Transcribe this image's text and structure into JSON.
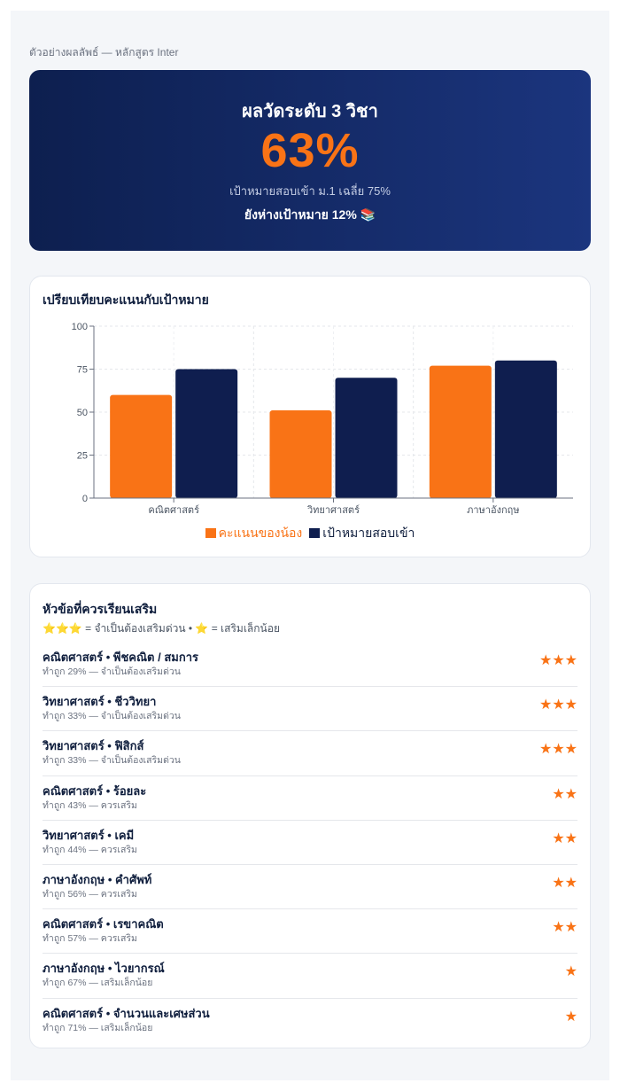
{
  "page": {
    "sample_label": "ตัวอย่างผลลัพธ์ — หลักสูตร Inter"
  },
  "hero": {
    "title": "ผลวัดระดับ 3 วิชา",
    "score": "63%",
    "target": "เป้าหมายสอบเข้า ม.1 เฉลี่ย 75%",
    "gap": "ยังห่างเป้าหมาย 12% 📚"
  },
  "chart": {
    "title": "เปรียบเทียบคะแนนกับเป้าหมาย"
  },
  "chart_data": {
    "type": "bar",
    "categories": [
      "คณิตศาสตร์",
      "วิทยาศาสตร์",
      "ภาษาอังกฤษ"
    ],
    "series": [
      {
        "name": "คะแนนของน้อง",
        "values": [
          60,
          51,
          77
        ],
        "color": "#f97316"
      },
      {
        "name": "เป้าหมายสอบเข้า",
        "values": [
          75,
          70,
          80
        ],
        "color": "#0f1e4f"
      }
    ],
    "ylim": [
      0,
      100
    ],
    "yticks": [
      0,
      25,
      50,
      75,
      100
    ],
    "grid": true,
    "legend": "bottom"
  },
  "topics": {
    "title": "หัวข้อที่ควรเรียนเสริม",
    "legend": "⭐⭐⭐ = จำเป็นต้องเสริมด่วน • ⭐ = เสริมเล็กน้อย",
    "items": [
      {
        "name": "คณิตศาสตร์ • พีชคณิต / สมการ",
        "detail": "ทำถูก 29% — จำเป็นต้องเสริมด่วน",
        "stars": "★★★",
        "priority": 3
      },
      {
        "name": "วิทยาศาสตร์ • ชีววิทยา",
        "detail": "ทำถูก 33% — จำเป็นต้องเสริมด่วน",
        "stars": "★★★",
        "priority": 3
      },
      {
        "name": "วิทยาศาสตร์ • ฟิสิกส์",
        "detail": "ทำถูก 33% — จำเป็นต้องเสริมด่วน",
        "stars": "★★★",
        "priority": 3
      },
      {
        "name": "คณิตศาสตร์ • ร้อยละ",
        "detail": "ทำถูก 43% — ควรเสริม",
        "stars": "★★",
        "priority": 2
      },
      {
        "name": "วิทยาศาสตร์ • เคมี",
        "detail": "ทำถูก 44% — ควรเสริม",
        "stars": "★★",
        "priority": 2
      },
      {
        "name": "ภาษาอังกฤษ • คำศัพท์",
        "detail": "ทำถูก 56% — ควรเสริม",
        "stars": "★★",
        "priority": 2
      },
      {
        "name": "คณิตศาสตร์ • เรขาคณิต",
        "detail": "ทำถูก 57% — ควรเสริม",
        "stars": "★★",
        "priority": 2
      },
      {
        "name": "ภาษาอังกฤษ • ไวยากรณ์",
        "detail": "ทำถูก 67% — เสริมเล็กน้อย",
        "stars": "★",
        "priority": 1
      },
      {
        "name": "คณิตศาสตร์ • จำนวนและเศษส่วน",
        "detail": "ทำถูก 71% — เสริมเล็กน้อย",
        "stars": "★",
        "priority": 1
      }
    ]
  },
  "colors": {
    "accent": "#f97316",
    "navy": "#0f1e4f"
  }
}
